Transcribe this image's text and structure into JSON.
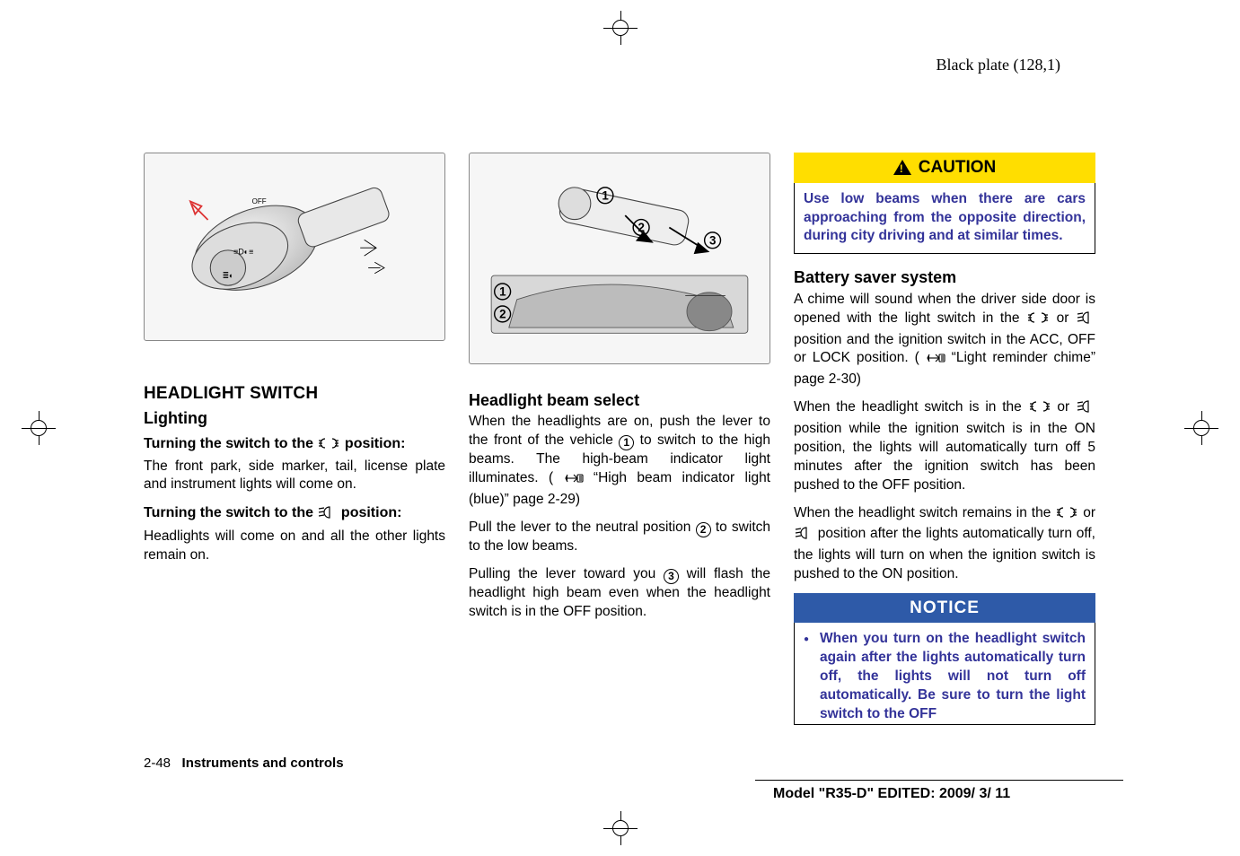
{
  "header": {
    "plate": "Black plate (128,1)"
  },
  "col1": {
    "h2": "HEADLIGHT SWITCH",
    "h3": "Lighting",
    "t1_title": "Turning the switch to the ",
    "t1_title_tail": " position:",
    "t1_body": "The front park, side marker, tail, license plate and instrument lights will come on.",
    "t2_title": "Turning the switch to the ",
    "t2_title_tail": " position:",
    "t2_body": "Headlights will come on and all the other lights remain on."
  },
  "col2": {
    "h3": "Headlight beam select",
    "p1a": "When the headlights are on, push the lever to the front of the vehicle ",
    "p1b": " to switch to the high beams. The high-beam indicator light illuminates. ( ",
    "p1c": " “High beam indicator light (blue)” page 2-29)",
    "p2a": "Pull the lever to the neutral position ",
    "p2b": " to switch to the low beams.",
    "p3a": "Pulling the lever toward you ",
    "p3b": " will flash the headlight high beam even when the headlight switch is in the OFF position."
  },
  "col3": {
    "caution_label": "CAUTION",
    "caution_body": "Use low beams when there are cars approaching from the opposite direction, during city driving and at similar times.",
    "h3": "Battery saver system",
    "p1a": "A chime will sound when the driver side door is opened with the light switch in the ",
    "p1b": " or ",
    "p1c": " position and the ignition switch in the ACC, OFF or LOCK position. ( ",
    "p1d": " “Light reminder chime” page 2-30)",
    "p2a": "When the headlight switch is in the ",
    "p2b": " or ",
    "p2c": " position while the ignition switch is in the ON position, the lights will automatically turn off 5 minutes after the ignition switch has been pushed to the OFF position.",
    "p3a": "When the headlight switch remains in the ",
    "p3b": " or ",
    "p3c": " position after the lights automatically turn off, the lights will turn on when the ignition switch is pushed to the ON position.",
    "notice_label": "NOTICE",
    "notice_item": "When you turn on the headlight switch again after the lights automatically turn off, the lights will not turn off automatically. Be sure to turn the light switch to the OFF"
  },
  "footer": {
    "page_num": "2-48",
    "chapter": "Instruments and controls",
    "model": "Model \"R35-D\"  EDITED:  2009/ 3/ 11"
  },
  "icons": {
    "park_svg": "<svg width='26' height='14' viewBox='0 0 26 14'><g stroke='#000' stroke-width='1.2' fill='none'><path d='M9 2 A5 5 0 0 0 9 12' /><path d='M17 2 A5 5 0 0 1 17 12' /><line x1='2' y1='4' x2='6' y2='4'/><line x1='2' y1='7' x2='6' y2='7'/><line x1='2' y1='10' x2='6' y2='10'/><line x1='20' y1='4' x2='24' y2='4'/><line x1='20' y1='7' x2='24' y2='7'/><line x1='20' y1='10' x2='24' y2='10'/></g></svg>",
    "head_svg": "<svg width='22' height='16' viewBox='0 0 22 16'><g stroke='#000' stroke-width='1.2' fill='none'><path d='M14 2 A6 6 0 1 0 14 14 L14 2 Z' fill='none'/><line x1='2' y1='4' x2='8' y2='3'/><line x1='2' y1='8' x2='8' y2='7'/><line x1='2' y1='12' x2='8' y2='11'/></g></svg>",
    "pointer_svg": "<svg width='22' height='14' viewBox='0 0 22 14'><g stroke='#000' stroke-width='1.1' fill='none'><path d='M2 7 L14 7'/><path d='M11 3 L15 7 L11 11'/><path d='M4 3 L2 7 L4 11' fill='#000'/><rect x='15' y='3' width='6' height='8' rx='1'/><line x1='17' y1='5' x2='20' y2='5'/><line x1='17' y1='7' x2='20' y2='7'/><line x1='17' y1='9' x2='20' y2='9'/></g></svg>"
  },
  "circled": {
    "1": "1",
    "2": "2",
    "3": "3"
  },
  "fig1_svg": "<svg viewBox='0 0 336 210'><defs><radialGradient id='g1' cx='40%' cy='40%' r='70%'><stop offset='0%' stop-color='#fff'/><stop offset='100%' stop-color='#bbb'/></radialGradient></defs><g stroke='#444' stroke-width='1.2' fill='url(#g1)'><ellipse cx='120' cy='110' rx='80' ry='48' transform='rotate(-20 120 110)'/><ellipse cx='100' cy='120' rx='62' ry='38' transform='rotate(-20 100 120)' fill='#ddd'/><rect x='170' y='70' width='110' height='44' rx='10' transform='rotate(-20 170 70)' fill='#e8e8e8'/><circle cx='85' cy='135' r='22' fill='#ccc'/></g><g stroke='#000' stroke-width='1' fill='none'><text x='115' y='55' font-size='9' fill='#000' stroke='none'>OFF</text><path d='M40 55 L60 75' stroke='#d33' stroke-width='2' marker-end=''/><polygon points='38,52 52,58 44,68' fill='none' stroke='#d33' stroke-width='2'/><path d='M255 100 L270 110 L255 120 M270 110 L250 110' stroke='#000'/><path d='M260 135 L275 135 M268 128 L280 135 L268 142' stroke='#000'/></g><g font-size='10' fill='#000'><text x='92' y='118'>≡D◐≡</text><text x='78' y='148'>≣◐</text></g></svg>",
  "fig2_svg": "<svg viewBox='0 0 336 210'><g stroke='#555' stroke-width='1' fill='#e8e8e8'><rect x='8' y='130' width='320' height='72' rx='4' fill='#d8d8d8'/><path d='M40 160 Q160 120 300 165 L310 195 L30 195 Z' fill='#bcbcbc'/><ellipse cx='280' cy='175' rx='28' ry='24' fill='#888'/><path d='M250 155 L300 155' stroke='#333'/></g><g stroke='#444' stroke-width='1.2' fill='#eee'><rect x='100' y='18' width='160' height='44' rx='14' transform='rotate(12 100 18)'/><ellipse cx='112' cy='40' rx='20' ry='20' fill='#ddd'/></g><g stroke='#000' stroke-width='2' fill='none'><line x1='175' y1='55' x2='200' y2='80'/><polygon points='198,76 208,88 190,86' fill='#000'/><line x1='230' y1='70' x2='270' y2='95'/><polygon points='266,90 278,100 262,102' fill='#000'/></g><g font-size='15' font-weight='bold' fill='#000'><circle cx='150' cy='30' r='10' fill='none' stroke='#000' stroke-width='1.6'/><text x='146' y='35'>1</text><circle cx='195' cy='70' r='10' fill='none' stroke='#000' stroke-width='1.6'/><text x='191' y='75'>2</text><circle cx='284' cy='86' r='10' fill='none' stroke='#000' stroke-width='1.6'/><text x='280' y='91'>3</text><circle cx='22' cy='150' r='10' fill='none' stroke='#000' stroke-width='1.6'/><text x='18' y='155'>1</text><circle cx='22' cy='178' r='10' fill='none' stroke='#000' stroke-width='1.6'/><text x='18' y='183'>2</text></g></svg>"
}
